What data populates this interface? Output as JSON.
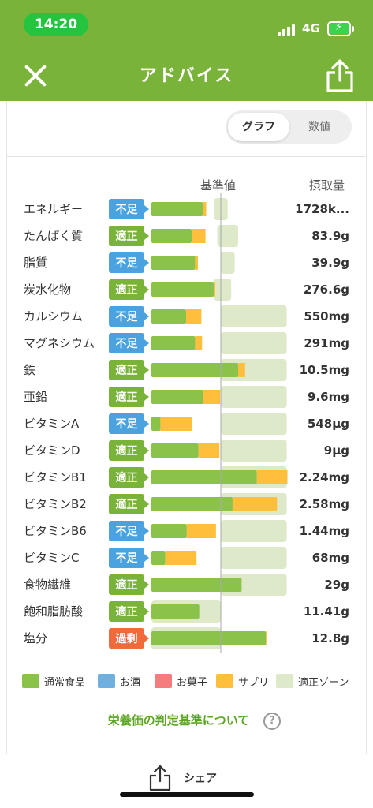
{
  "status": {
    "time": "14:20",
    "network": "4G"
  },
  "nav": {
    "title": "アドバイス"
  },
  "toggle": {
    "graph_label": "グラフ",
    "numeric_label": "数値"
  },
  "columns": {
    "standard": "基準値",
    "intake": "摂取量"
  },
  "colors": {
    "normal_food": "#8bc34a",
    "alcohol": "#6fb0e0",
    "snack": "#f47c7c",
    "supplement": "#ffbe3c",
    "zone": "#dde9c9",
    "badge_short": "#4aa3df",
    "badge_ok": "#7ab33a",
    "badge_over": "#f06a3c"
  },
  "chart_data": {
    "type": "bar",
    "stacked": true,
    "reference_line": 1.0,
    "x_unit": "ratio of standard value",
    "rows": [
      {
        "name": "エネルギー",
        "status": "不足",
        "status_type": "short",
        "value": "1728k...",
        "normal": 0.74,
        "supplement": 0.05,
        "zone": [
          0.9,
          1.1
        ]
      },
      {
        "name": "たんぱく質",
        "status": "適正",
        "status_type": "ok",
        "value": "83.9g",
        "normal": 0.58,
        "supplement": 0.2,
        "zone": [
          0.95,
          1.25
        ]
      },
      {
        "name": "脂質",
        "status": "不足",
        "status_type": "short",
        "value": "39.9g",
        "normal": 0.63,
        "supplement": 0.04,
        "zone": [
          1.0,
          1.2
        ]
      },
      {
        "name": "炭水化物",
        "status": "適正",
        "status_type": "ok",
        "value": "276.6g",
        "normal": 0.9,
        "supplement": 0.02,
        "zone": [
          0.9,
          1.15
        ]
      },
      {
        "name": "カルシウム",
        "status": "不足",
        "status_type": "short",
        "value": "550mg",
        "normal": 0.5,
        "supplement": 0.22,
        "zone": [
          1.0,
          1.95
        ]
      },
      {
        "name": "マグネシウム",
        "status": "不足",
        "status_type": "short",
        "value": "291mg",
        "normal": 0.63,
        "supplement": 0.1,
        "zone": [
          1.0,
          1.95
        ]
      },
      {
        "name": "鉄",
        "status": "適正",
        "status_type": "ok",
        "value": "10.5mg",
        "normal": 1.25,
        "supplement": 0.1,
        "zone": [
          1.0,
          1.95
        ]
      },
      {
        "name": "亜鉛",
        "status": "適正",
        "status_type": "ok",
        "value": "9.6mg",
        "normal": 0.75,
        "supplement": 0.24,
        "zone": [
          1.0,
          1.95
        ]
      },
      {
        "name": "ビタミンA",
        "status": "不足",
        "status_type": "short",
        "value": "548µg",
        "normal": 0.13,
        "supplement": 0.45,
        "zone": [
          1.0,
          1.95
        ]
      },
      {
        "name": "ビタミンD",
        "status": "適正",
        "status_type": "ok",
        "value": "9µg",
        "normal": 0.68,
        "supplement": 0.3,
        "zone": [
          1.0,
          1.95
        ]
      },
      {
        "name": "ビタミンB1",
        "status": "適正",
        "status_type": "ok",
        "value": "2.24mg",
        "normal": 1.52,
        "supplement": 0.44,
        "zone": [
          1.0,
          1.95
        ]
      },
      {
        "name": "ビタミンB2",
        "status": "適正",
        "status_type": "ok",
        "value": "2.58mg",
        "normal": 1.17,
        "supplement": 0.64,
        "zone": [
          1.0,
          1.95
        ]
      },
      {
        "name": "ビタミンB6",
        "status": "不足",
        "status_type": "short",
        "value": "1.44mg",
        "normal": 0.51,
        "supplement": 0.42,
        "zone": [
          1.0,
          1.95
        ]
      },
      {
        "name": "ビタミンC",
        "status": "不足",
        "status_type": "short",
        "value": "68mg",
        "normal": 0.2,
        "supplement": 0.45,
        "zone": [
          1.0,
          1.95
        ]
      },
      {
        "name": "食物繊維",
        "status": "適正",
        "status_type": "ok",
        "value": "29g",
        "normal": 1.3,
        "supplement": 0.0,
        "zone": [
          1.0,
          1.95
        ]
      },
      {
        "name": "飽和脂肪酸",
        "status": "適正",
        "status_type": "ok",
        "value": "11.41g",
        "normal": 0.69,
        "supplement": 0.0,
        "zone": [
          0.0,
          1.0
        ]
      },
      {
        "name": "塩分",
        "status": "過剰",
        "status_type": "over",
        "value": "12.8g",
        "normal": 1.65,
        "supplement": 0.02,
        "zone": [
          0.0,
          1.0
        ]
      }
    ]
  },
  "legend": [
    {
      "label": "通常食品",
      "color": "#8bc34a"
    },
    {
      "label": "お酒",
      "color": "#6fb0e0"
    },
    {
      "label": "お菓子",
      "color": "#f47c7c"
    },
    {
      "label": "サプリ",
      "color": "#ffbe3c"
    },
    {
      "label": "適正ゾーン",
      "color": "#dde9c9"
    }
  ],
  "criteria_link": "栄養価の判定基準について",
  "bottom": {
    "share_label": "シェア"
  }
}
